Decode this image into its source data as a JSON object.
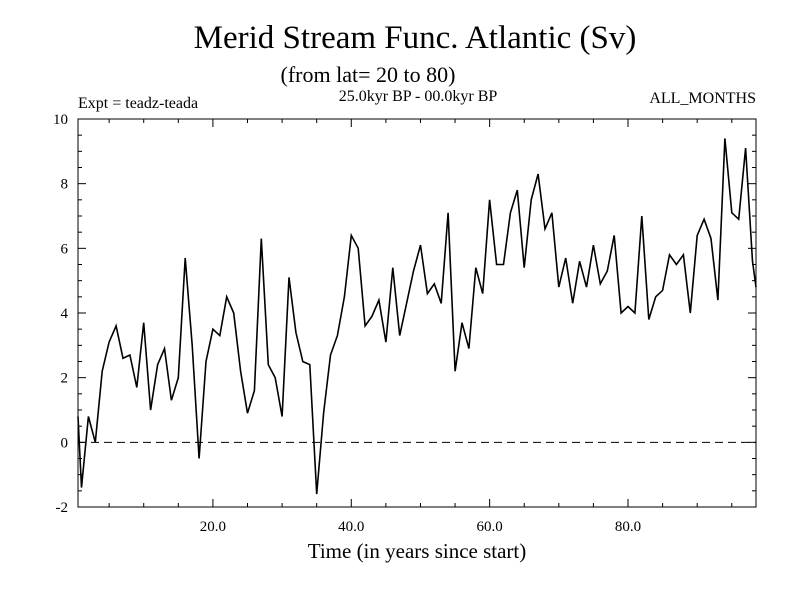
{
  "chart_data": {
    "type": "line",
    "title": "Merid Stream Func. Atlantic (Sv)",
    "subtitle": "(from lat= 20 to 80)",
    "experiment_label": "Expt = teadz-teada",
    "period_label": "25.0kyr BP - 00.0kyr BP",
    "months_label": "ALL_MONTHS",
    "xlabel": "Time (in years since start)",
    "ylabel": "",
    "xlim": [
      0.5,
      98.5
    ],
    "ylim": [
      -2,
      10
    ],
    "x_ticks": [
      20,
      40,
      60,
      80
    ],
    "x_tick_labels": [
      "20.0",
      "40.0",
      "60.0",
      "80.0"
    ],
    "y_ticks": [
      -2,
      0,
      2,
      4,
      6,
      8,
      10
    ],
    "y_tick_labels": [
      "-2",
      "0",
      "2",
      "4",
      "6",
      "8",
      "10"
    ],
    "reference_line": {
      "y": 0,
      "style": "dashed"
    },
    "series": [
      {
        "name": "Atlantic meridional stream function",
        "x": [
          0.5,
          1,
          2,
          3,
          4,
          5,
          6,
          7,
          8,
          9,
          10,
          11,
          12,
          13,
          14,
          15,
          16,
          17,
          18,
          19,
          20,
          21,
          22,
          23,
          24,
          25,
          26,
          27,
          28,
          29,
          30,
          31,
          32,
          33,
          34,
          35,
          36,
          37,
          38,
          39,
          40,
          41,
          42,
          43,
          44,
          45,
          46,
          47,
          48,
          49,
          50,
          51,
          52,
          53,
          54,
          55,
          56,
          57,
          58,
          59,
          60,
          61,
          62,
          63,
          64,
          65,
          66,
          67,
          68,
          69,
          70,
          71,
          72,
          73,
          74,
          75,
          76,
          77,
          78,
          79,
          80,
          81,
          82,
          83,
          84,
          85,
          86,
          87,
          88,
          89,
          90,
          91,
          92,
          93,
          94,
          95,
          96,
          97,
          98,
          98.5
        ],
        "values": [
          0.8,
          -1.4,
          0.8,
          0,
          2.2,
          3.1,
          3.6,
          2.6,
          2.7,
          1.7,
          3.7,
          1,
          2.4,
          2.9,
          1.3,
          2,
          5.7,
          3,
          -0.5,
          2.5,
          3.5,
          3.3,
          4.5,
          4,
          2.2,
          0.9,
          1.6,
          6.3,
          2.4,
          2,
          0.8,
          5.1,
          3.4,
          2.5,
          2.4,
          -1.6,
          0.9,
          2.7,
          3.3,
          4.5,
          6.4,
          6,
          3.6,
          3.9,
          4.4,
          3.1,
          5.4,
          3.3,
          4.3,
          5.3,
          6.1,
          4.6,
          4.9,
          4.3,
          7.1,
          2.2,
          3.7,
          2.9,
          5.4,
          4.6,
          7.5,
          5.5,
          5.5,
          7.1,
          7.8,
          5.4,
          7.5,
          8.3,
          6.6,
          7.1,
          4.8,
          5.7,
          4.3,
          5.6,
          4.8,
          6.1,
          4.9,
          5.3,
          6.4,
          4,
          4.2,
          4,
          7,
          3.8,
          4.5,
          4.7,
          5.8,
          5.5,
          5.8,
          4,
          6.4,
          6.9,
          6.3,
          4.4,
          9.4,
          7.1,
          6.9,
          9.1,
          5.6,
          4.8
        ]
      }
    ]
  }
}
